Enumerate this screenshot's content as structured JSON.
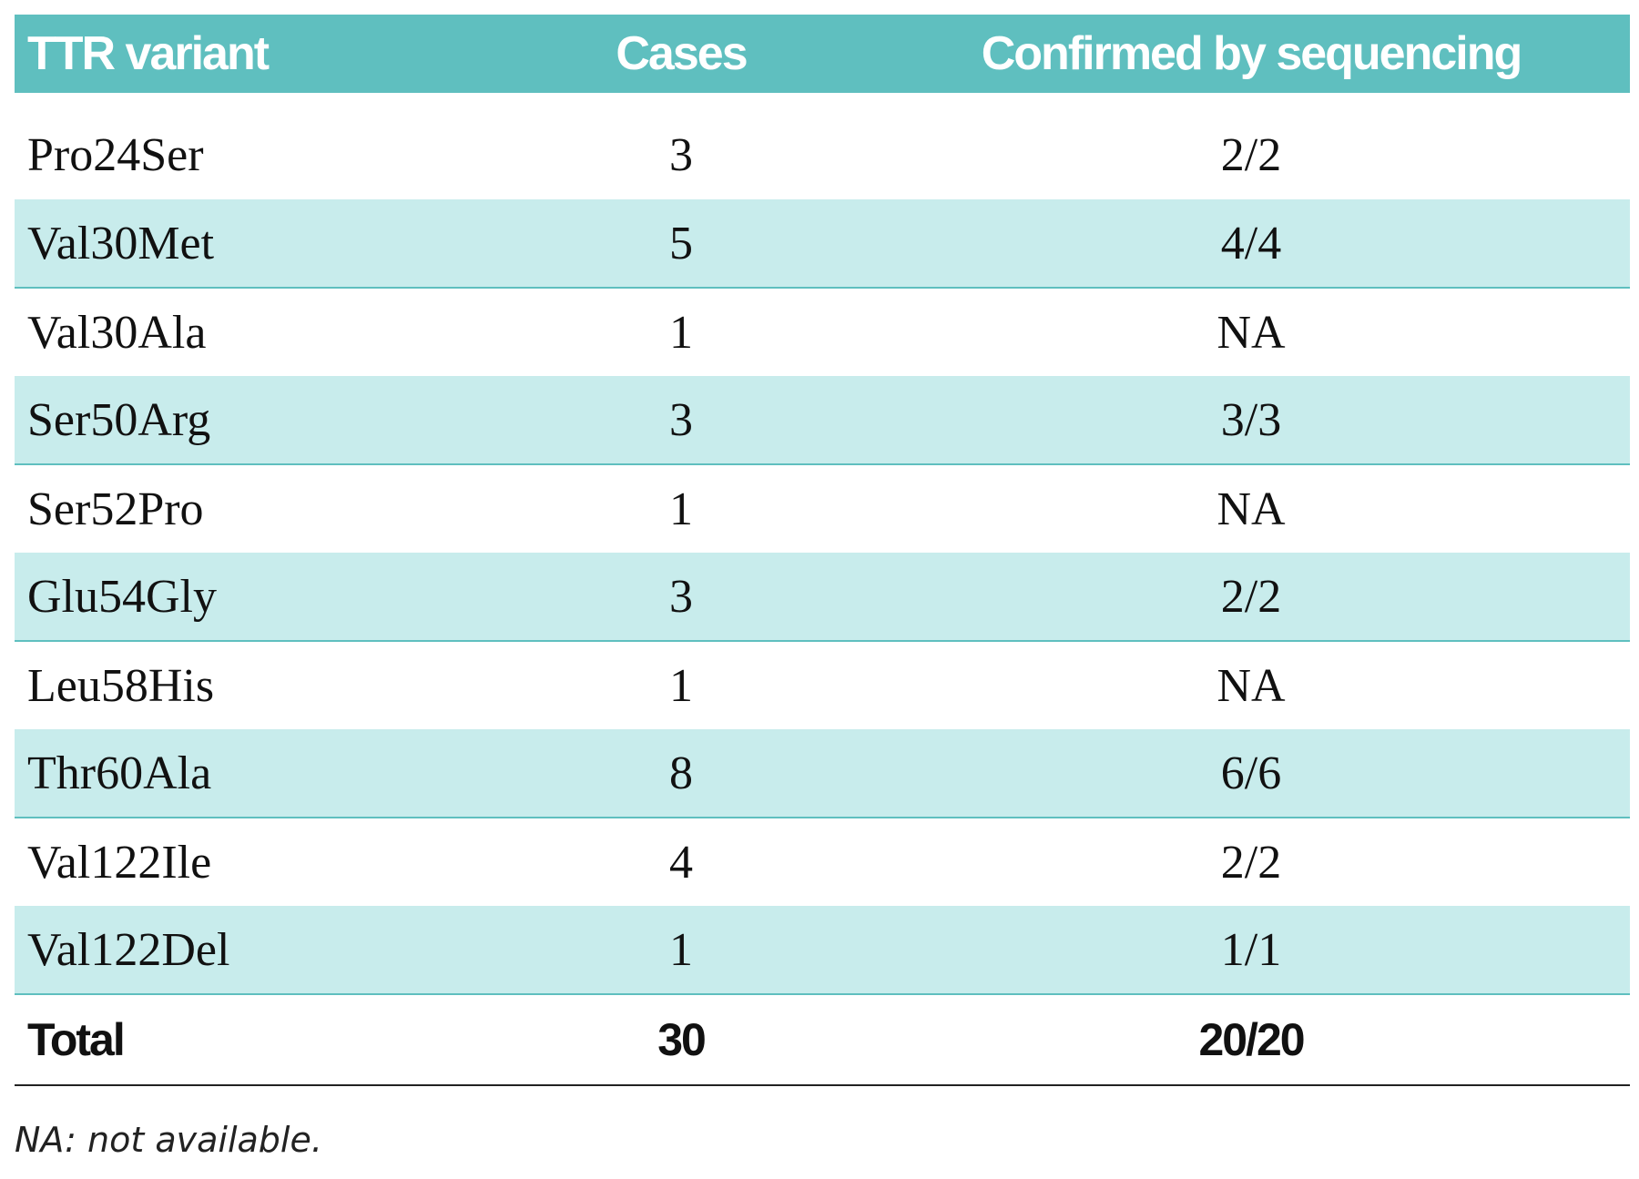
{
  "table": {
    "headers": [
      "TTR variant",
      "Cases",
      "Confirmed by sequencing"
    ],
    "rows": [
      {
        "variant": "Pro24Ser",
        "cases": "3",
        "confirmed": "2/2"
      },
      {
        "variant": "Val30Met",
        "cases": "5",
        "confirmed": "4/4"
      },
      {
        "variant": "Val30Ala",
        "cases": "1",
        "confirmed": "NA"
      },
      {
        "variant": "Ser50Arg",
        "cases": "3",
        "confirmed": "3/3"
      },
      {
        "variant": "Ser52Pro",
        "cases": "1",
        "confirmed": "NA"
      },
      {
        "variant": "Glu54Gly",
        "cases": "3",
        "confirmed": "2/2"
      },
      {
        "variant": "Leu58His",
        "cases": "1",
        "confirmed": "NA"
      },
      {
        "variant": "Thr60Ala",
        "cases": "8",
        "confirmed": "6/6"
      },
      {
        "variant": "Val122Ile",
        "cases": "4",
        "confirmed": "2/2"
      },
      {
        "variant": "Val122Del",
        "cases": "1",
        "confirmed": "1/1"
      }
    ],
    "total": {
      "label": "Total",
      "cases": "30",
      "confirmed": "20/20"
    }
  },
  "footnote": "NA: not available.",
  "colors": {
    "header_bg": "#5fbfbf",
    "shaded_row_bg": "#c8ecec",
    "row_rule": "#5fbfbf"
  }
}
